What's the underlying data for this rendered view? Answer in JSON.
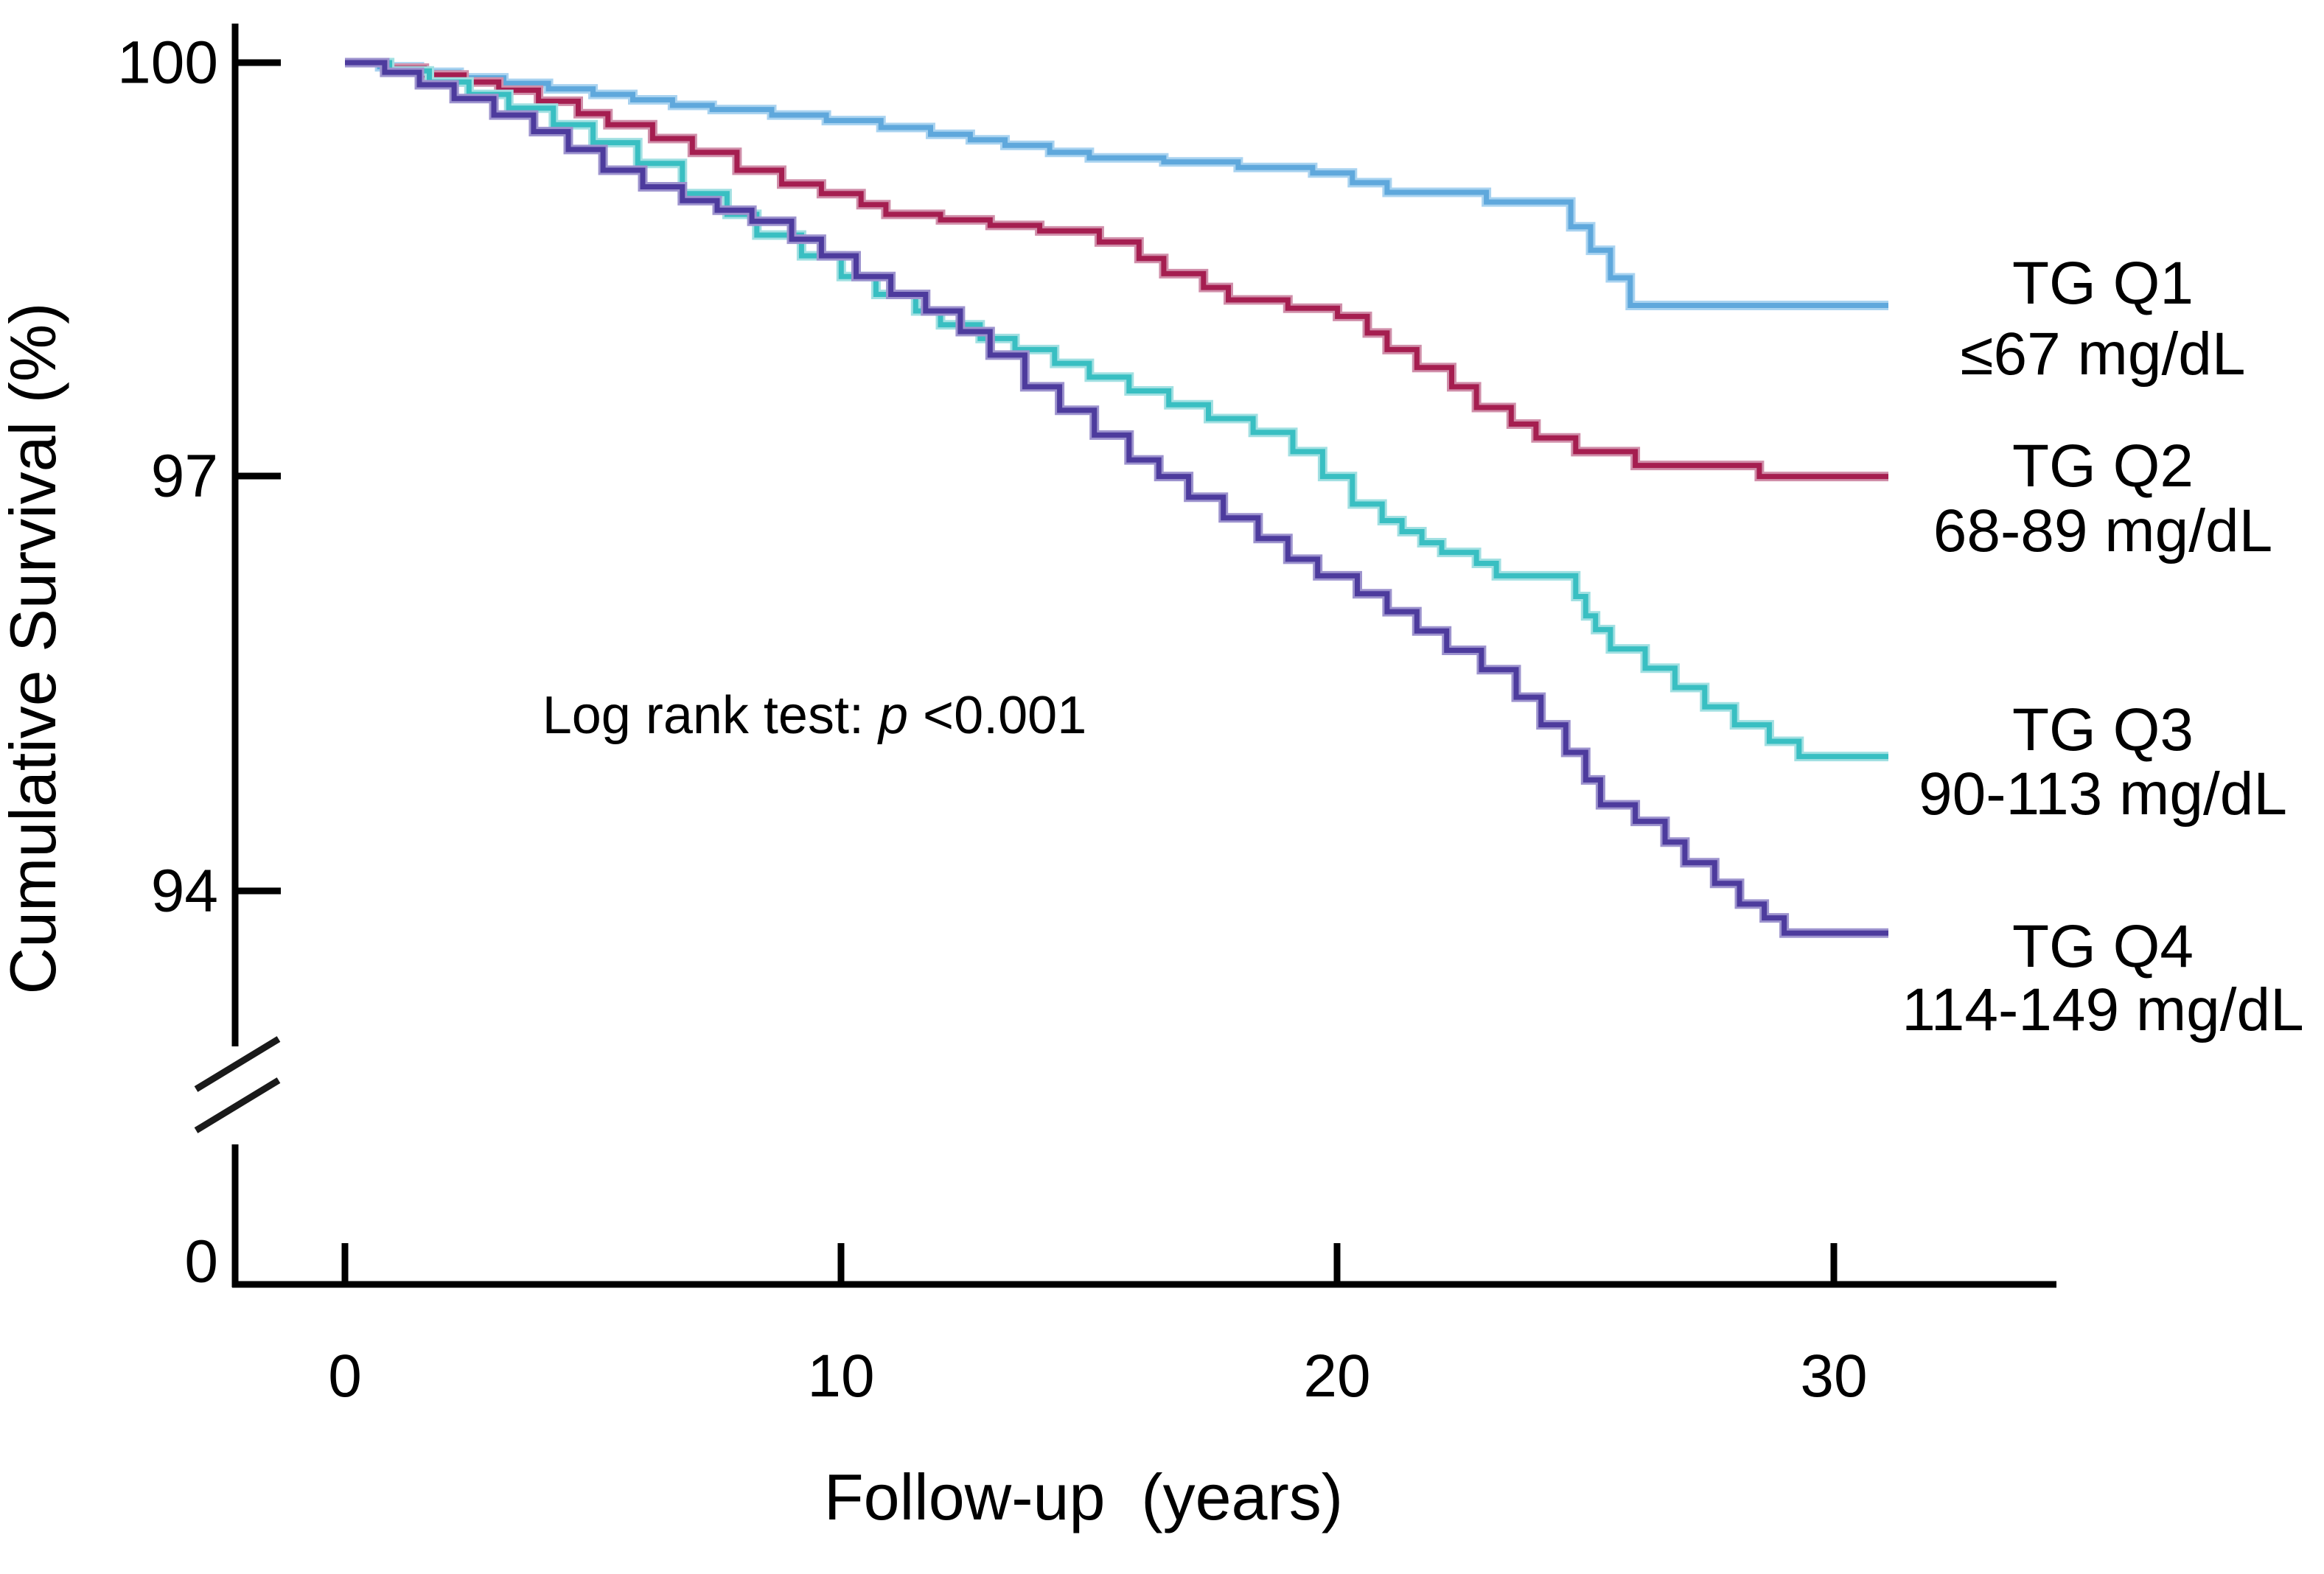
{
  "chart_data": {
    "type": "line",
    "subtype": "kaplan-meier-step",
    "title": "",
    "xlabel": "Follow-up  (years)",
    "ylabel": "Cumulative Survival (%)",
    "x_tick_labels": [
      "0",
      "10",
      "20",
      "30"
    ],
    "x_tick_years": [
      0,
      10,
      20,
      30
    ],
    "y_tick_labels": [
      "100",
      "97",
      "94"
    ],
    "y_tick_pct": [
      100,
      97,
      94
    ],
    "y_zero_label": "0",
    "axis_break": true,
    "xlim_years": [
      0,
      31.1
    ],
    "ylim_visible_pct": [
      93.0,
      100.0
    ],
    "grid": false,
    "legend_position": "right",
    "annotation": {
      "prefix": "Log rank test: ",
      "p_symbol": "p",
      "value": " <0.001"
    },
    "series": [
      {
        "id": "q1",
        "name": "TG Q1",
        "range_label": "≤67 mg/dL",
        "color": "#5FA8DC",
        "halo_color": "#A9D3F0",
        "final_pct": 98.24,
        "points": [
          [
            0,
            100
          ],
          [
            0.7,
            99.97
          ],
          [
            1.5,
            99.93
          ],
          [
            2.3,
            99.89
          ],
          [
            3.2,
            99.85
          ],
          [
            4.1,
            99.81
          ],
          [
            5.0,
            99.77
          ],
          [
            5.8,
            99.73
          ],
          [
            6.6,
            99.69
          ],
          [
            7.4,
            99.66
          ],
          [
            8.6,
            99.62
          ],
          [
            9.7,
            99.58
          ],
          [
            10.8,
            99.53
          ],
          [
            11.8,
            99.48
          ],
          [
            12.6,
            99.44
          ],
          [
            13.3,
            99.4
          ],
          [
            14.2,
            99.35
          ],
          [
            15.0,
            99.31
          ],
          [
            16.5,
            99.28
          ],
          [
            18.0,
            99.24
          ],
          [
            19.5,
            99.2
          ],
          [
            20.3,
            99.13
          ],
          [
            21.0,
            99.06
          ],
          [
            23.0,
            98.99
          ],
          [
            24.7,
            98.81
          ],
          [
            25.1,
            98.64
          ],
          [
            25.5,
            98.44
          ],
          [
            25.9,
            98.24
          ],
          [
            31.1,
            98.24
          ]
        ]
      },
      {
        "id": "q2",
        "name": "TG Q2",
        "range_label": "68-89 mg/dL",
        "color": "#A51E50",
        "halo_color": "#D08FAA",
        "final_pct": 97.0,
        "points": [
          [
            0,
            100
          ],
          [
            0.8,
            99.96
          ],
          [
            1.6,
            99.91
          ],
          [
            2.4,
            99.86
          ],
          [
            3.1,
            99.8
          ],
          [
            3.9,
            99.72
          ],
          [
            4.7,
            99.63
          ],
          [
            5.3,
            99.55
          ],
          [
            6.2,
            99.45
          ],
          [
            7.0,
            99.35
          ],
          [
            7.9,
            99.22
          ],
          [
            8.8,
            99.12
          ],
          [
            9.6,
            99.05
          ],
          [
            10.4,
            98.97
          ],
          [
            10.9,
            98.9
          ],
          [
            12.0,
            98.86
          ],
          [
            13.0,
            98.82
          ],
          [
            14.0,
            98.78
          ],
          [
            15.2,
            98.7
          ],
          [
            16.0,
            98.58
          ],
          [
            16.5,
            98.47
          ],
          [
            17.3,
            98.37
          ],
          [
            17.8,
            98.28
          ],
          [
            19.0,
            98.22
          ],
          [
            20.0,
            98.16
          ],
          [
            20.6,
            98.04
          ],
          [
            21.0,
            97.92
          ],
          [
            21.6,
            97.79
          ],
          [
            22.3,
            97.65
          ],
          [
            22.8,
            97.5
          ],
          [
            23.5,
            97.38
          ],
          [
            24.0,
            97.28
          ],
          [
            24.8,
            97.18
          ],
          [
            26.0,
            97.08
          ],
          [
            28.5,
            97.0
          ],
          [
            31.1,
            97.0
          ]
        ]
      },
      {
        "id": "q3",
        "name": "TG Q3",
        "range_label": "90-113 mg/dL",
        "color": "#39BFC2",
        "halo_color": "#A2E0E2",
        "final_pct": 95.0,
        "points": [
          [
            0,
            100
          ],
          [
            0.9,
            99.94
          ],
          [
            1.7,
            99.86
          ],
          [
            2.5,
            99.77
          ],
          [
            3.3,
            99.67
          ],
          [
            4.2,
            99.55
          ],
          [
            5.0,
            99.42
          ],
          [
            5.9,
            99.27
          ],
          [
            6.8,
            99.05
          ],
          [
            7.7,
            98.9
          ],
          [
            8.3,
            98.75
          ],
          [
            9.2,
            98.6
          ],
          [
            10.0,
            98.45
          ],
          [
            10.7,
            98.32
          ],
          [
            11.5,
            98.2
          ],
          [
            12.0,
            98.1
          ],
          [
            12.8,
            98.0
          ],
          [
            13.5,
            97.92
          ],
          [
            14.3,
            97.82
          ],
          [
            15.0,
            97.72
          ],
          [
            15.8,
            97.62
          ],
          [
            16.6,
            97.52
          ],
          [
            17.4,
            97.42
          ],
          [
            18.3,
            97.32
          ],
          [
            19.1,
            97.18
          ],
          [
            19.7,
            97.0
          ],
          [
            20.3,
            96.8
          ],
          [
            20.9,
            96.68
          ],
          [
            21.3,
            96.6
          ],
          [
            21.7,
            96.52
          ],
          [
            22.1,
            96.45
          ],
          [
            22.8,
            96.37
          ],
          [
            23.2,
            96.28
          ],
          [
            24.8,
            96.13
          ],
          [
            25.0,
            95.99
          ],
          [
            25.2,
            95.89
          ],
          [
            25.5,
            95.75
          ],
          [
            26.2,
            95.61
          ],
          [
            26.8,
            95.47
          ],
          [
            27.4,
            95.33
          ],
          [
            28.0,
            95.2
          ],
          [
            28.7,
            95.08
          ],
          [
            29.3,
            94.97
          ],
          [
            31.1,
            94.97
          ]
        ]
      },
      {
        "id": "q4",
        "name": "TG Q4",
        "range_label": "114-149 mg/dL",
        "color": "#4D3B9D",
        "halo_color": "#9D93CE",
        "final_pct": 93.7,
        "points": [
          [
            0,
            100
          ],
          [
            0.8,
            99.93
          ],
          [
            1.5,
            99.84
          ],
          [
            2.2,
            99.74
          ],
          [
            3.0,
            99.62
          ],
          [
            3.8,
            99.5
          ],
          [
            4.5,
            99.37
          ],
          [
            5.2,
            99.22
          ],
          [
            6.0,
            99.1
          ],
          [
            6.8,
            99.0
          ],
          [
            7.5,
            98.93
          ],
          [
            8.2,
            98.85
          ],
          [
            9.0,
            98.72
          ],
          [
            9.6,
            98.6
          ],
          [
            10.3,
            98.45
          ],
          [
            11.0,
            98.32
          ],
          [
            11.7,
            98.2
          ],
          [
            12.4,
            98.05
          ],
          [
            13.0,
            97.88
          ],
          [
            13.7,
            97.65
          ],
          [
            14.4,
            97.48
          ],
          [
            15.1,
            97.3
          ],
          [
            15.8,
            97.12
          ],
          [
            16.4,
            97.0
          ],
          [
            17.0,
            96.85
          ],
          [
            17.7,
            96.7
          ],
          [
            18.4,
            96.55
          ],
          [
            19.0,
            96.4
          ],
          [
            19.6,
            96.28
          ],
          [
            20.4,
            96.15
          ],
          [
            21.0,
            96.02
          ],
          [
            21.6,
            95.88
          ],
          [
            22.2,
            95.74
          ],
          [
            22.9,
            95.6
          ],
          [
            23.6,
            95.4
          ],
          [
            24.1,
            95.2
          ],
          [
            24.6,
            95.0
          ],
          [
            25.0,
            94.8
          ],
          [
            25.3,
            94.62
          ],
          [
            26.0,
            94.5
          ],
          [
            26.6,
            94.35
          ],
          [
            27.0,
            94.2
          ],
          [
            27.6,
            94.05
          ],
          [
            28.1,
            93.9
          ],
          [
            28.6,
            93.8
          ],
          [
            29.0,
            93.69
          ],
          [
            31.1,
            93.69
          ]
        ]
      }
    ]
  }
}
